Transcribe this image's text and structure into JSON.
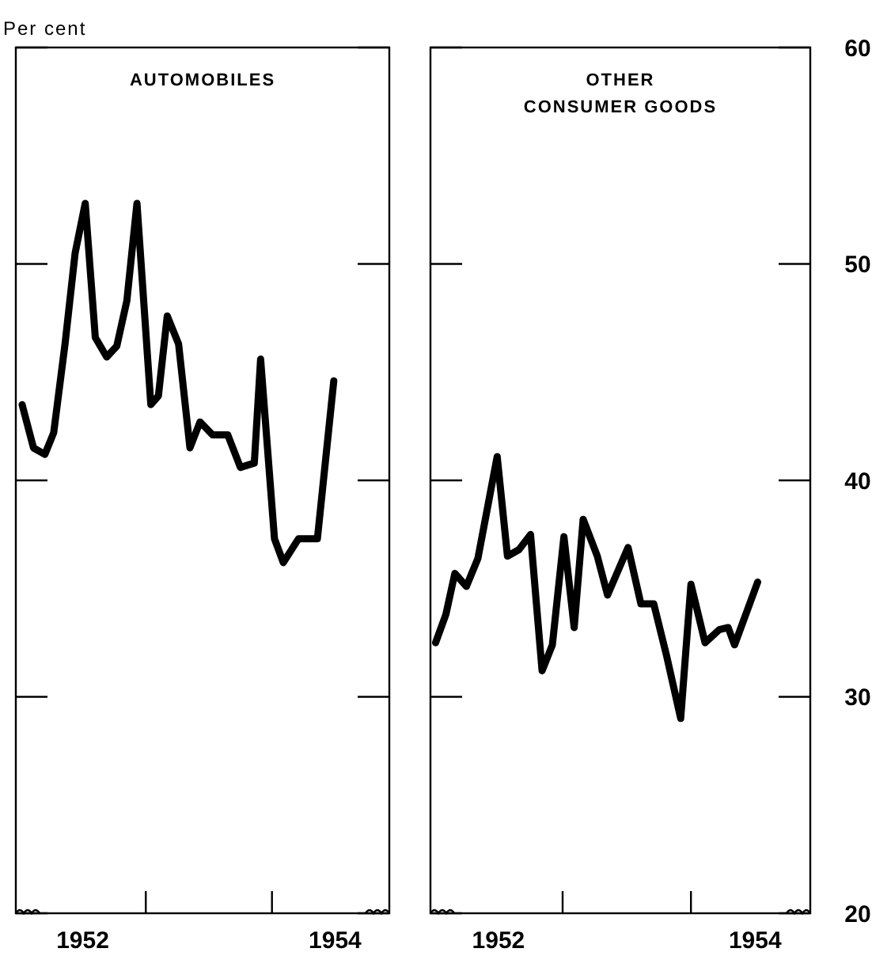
{
  "chart_data": [
    {
      "type": "line",
      "title": "AUTOMOBILES",
      "ylabel": "Per cent",
      "series": [
        {
          "color": "#000000",
          "x": [
            1952.02,
            1952.11,
            1952.2,
            1952.27,
            1952.36,
            1952.44,
            1952.52,
            1952.6,
            1952.69,
            1952.77,
            1952.85,
            1952.93,
            1953.04,
            1953.1,
            1953.17,
            1953.26,
            1953.35,
            1953.43,
            1953.53,
            1953.65,
            1953.75,
            1953.86,
            1953.91,
            1954.02,
            1954.09,
            1954.21,
            1954.36,
            1954.49
          ],
          "values": [
            43.5,
            41.5,
            41.2,
            42.2,
            46.3,
            50.5,
            52.8,
            46.6,
            45.7,
            46.2,
            48.3,
            52.8,
            43.5,
            43.9,
            47.6,
            46.3,
            41.5,
            42.7,
            42.1,
            42.1,
            40.6,
            40.8,
            45.6,
            37.3,
            36.2,
            37.3,
            37.3,
            44.6
          ]
        }
      ],
      "xlim": [
        1951.97,
        1954.93
      ],
      "xticks": [
        {
          "value": 1952.5,
          "label": "1952"
        },
        {
          "value": 1953,
          "label": null
        },
        {
          "value": 1954,
          "label": null
        },
        {
          "value": 1954.5,
          "label": "1954"
        }
      ],
      "ylim": [
        20,
        60
      ],
      "yticks": [
        {
          "value": 20,
          "label": null
        },
        {
          "value": 30,
          "label": null
        },
        {
          "value": 40,
          "label": null
        },
        {
          "value": 50,
          "label": null
        },
        {
          "value": 60,
          "label": null
        }
      ],
      "tick_labels": "x",
      "marker": "none",
      "line_style": "solid"
    },
    {
      "type": "line",
      "title": "OTHER CONSUMER GOODS",
      "series": [
        {
          "color": "#000000",
          "x": [
            1952.01,
            1952.09,
            1952.16,
            1952.25,
            1952.34,
            1952.49,
            1952.57,
            1952.66,
            1952.75,
            1952.84,
            1952.92,
            1953.01,
            1953.09,
            1953.16,
            1953.27,
            1953.35,
            1953.51,
            1953.61,
            1953.71,
            1953.81,
            1953.92,
            1954.0,
            1954.11,
            1954.22,
            1954.29,
            1954.34,
            1954.52
          ],
          "values": [
            32.5,
            33.8,
            35.7,
            35.1,
            36.4,
            41.1,
            36.5,
            36.8,
            37.5,
            31.2,
            32.4,
            37.4,
            33.2,
            38.2,
            36.5,
            34.7,
            36.9,
            34.3,
            34.3,
            31.9,
            29.0,
            35.2,
            32.5,
            33.1,
            33.2,
            32.4,
            35.3
          ]
        }
      ],
      "xlim": [
        1951.97,
        1954.93
      ],
      "xticks": [
        {
          "value": 1952.5,
          "label": "1952"
        },
        {
          "value": 1953,
          "label": null
        },
        {
          "value": 1954,
          "label": null
        },
        {
          "value": 1954.5,
          "label": "1954"
        }
      ],
      "ylim": [
        20,
        60
      ],
      "yticks": [
        20,
        30,
        40,
        50,
        60
      ],
      "marker": "none",
      "line_style": "solid"
    }
  ]
}
